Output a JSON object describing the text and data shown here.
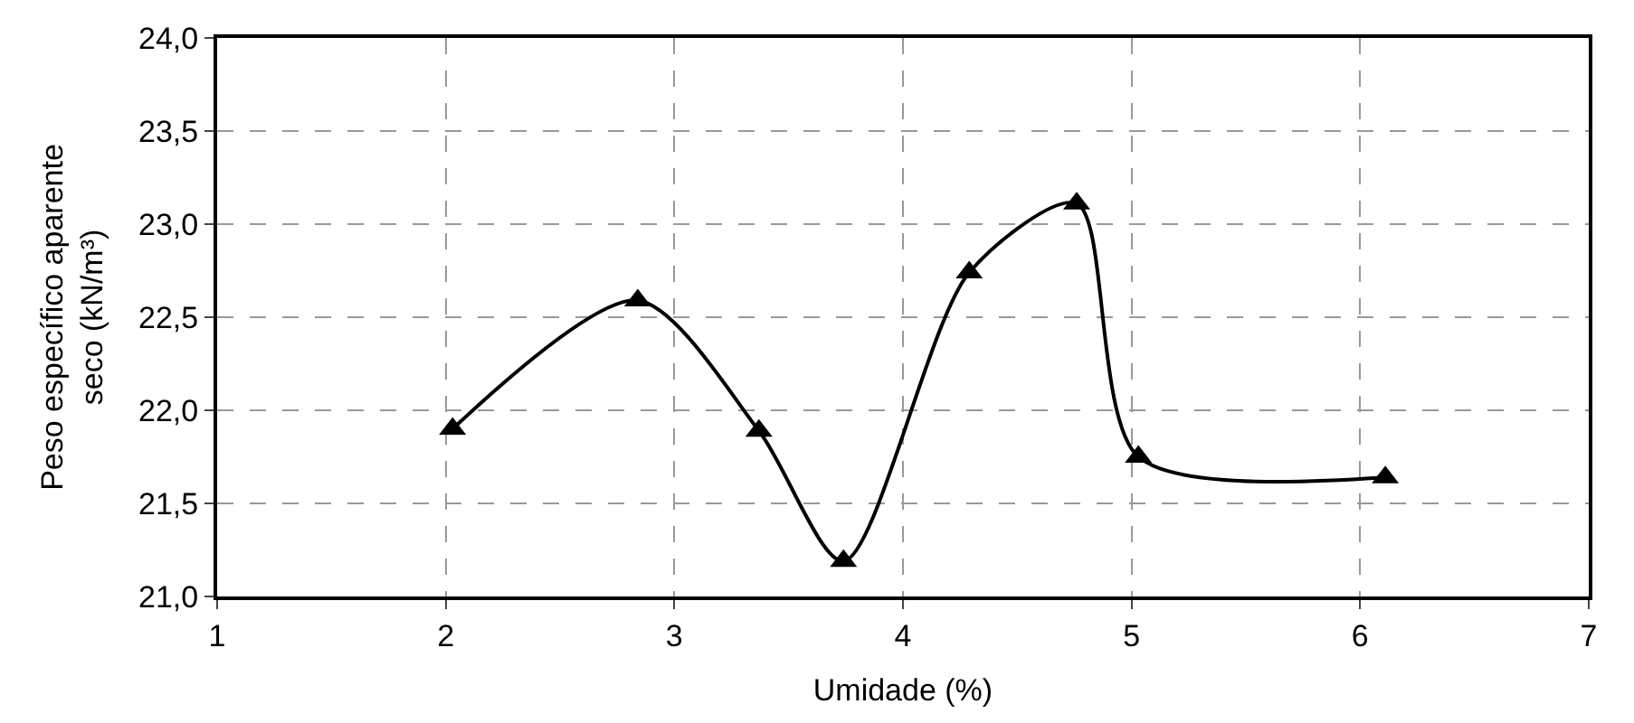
{
  "chart_data": {
    "type": "line",
    "xlabel": "Umidade (%)",
    "ylabel": "Peso específico aparente seco (kN/m³)",
    "x": [
      2.03,
      2.84,
      3.37,
      3.74,
      4.29,
      4.76,
      5.03,
      6.11
    ],
    "series": [
      {
        "color": "#000000",
        "values": [
          21.9,
          22.59,
          21.89,
          21.19,
          22.74,
          23.11,
          21.75,
          21.64
        ]
      }
    ],
    "xlim": [
      1,
      7
    ],
    "xticks": [
      1,
      2,
      3,
      4,
      5,
      6,
      7
    ],
    "ylim": [
      21.0,
      24.0
    ],
    "yticks": [
      {
        "value": 21.0,
        "label": "21,0"
      },
      {
        "value": 21.5,
        "label": "21,5"
      },
      {
        "value": 22.0,
        "label": "22,0"
      },
      {
        "value": 22.5,
        "label": "22,5"
      },
      {
        "value": 23.0,
        "label": "23,0"
      },
      {
        "value": 23.5,
        "label": "23,5"
      },
      {
        "value": 24.0,
        "label": "24,0"
      }
    ],
    "grid": true,
    "marker": "triangle",
    "line_style": "solid",
    "legend": false
  }
}
